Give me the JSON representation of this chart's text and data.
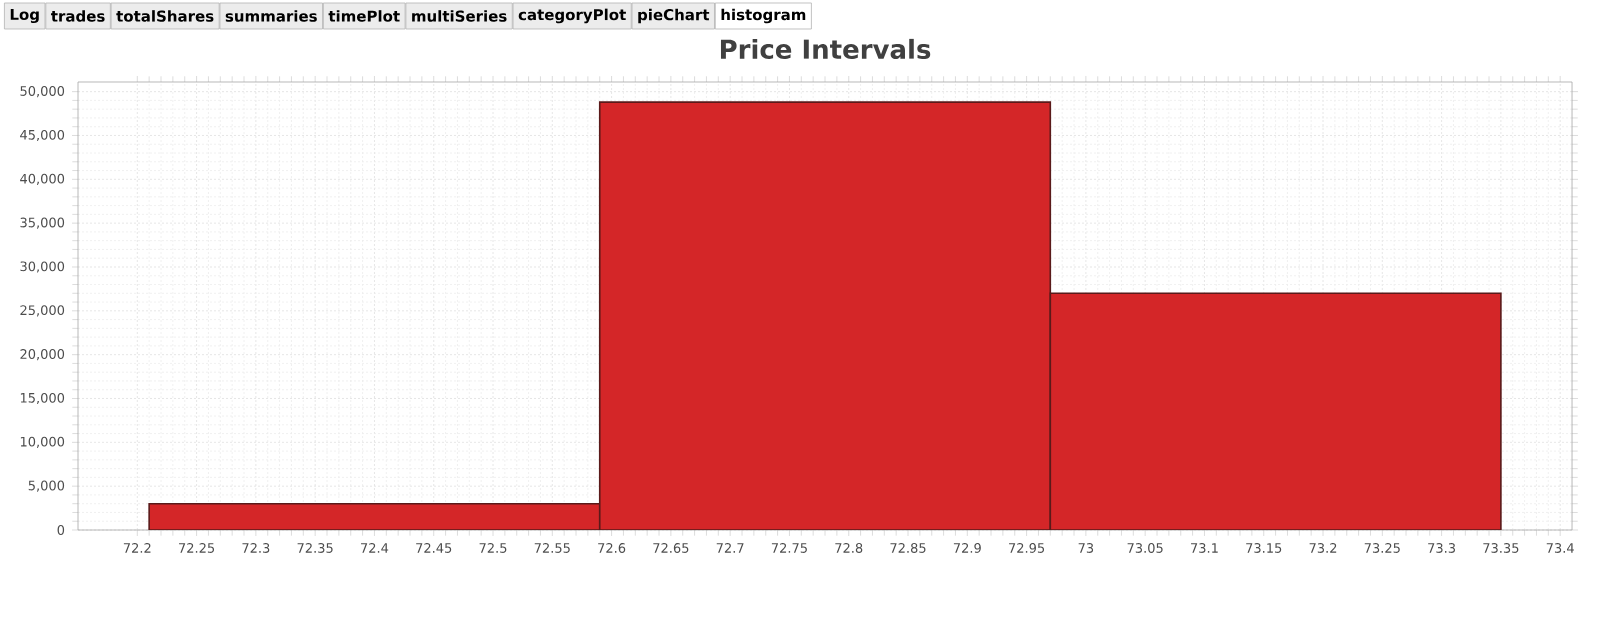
{
  "chart_data": {
    "type": "histogram",
    "title": "Price Intervals",
    "bins": [
      72.21,
      72.59,
      72.97,
      73.35
    ],
    "values": [
      3000,
      48800,
      27000
    ],
    "color": "#d42628",
    "xlim": [
      72.15,
      73.41
    ],
    "ylim": [
      0,
      51100
    ],
    "xticks": [
      72.2,
      72.25,
      72.3,
      72.35,
      72.4,
      72.45,
      72.5,
      72.55,
      72.6,
      72.65,
      72.7,
      72.75,
      72.8,
      72.85,
      72.9,
      72.95,
      73,
      73.05,
      73.1,
      73.15,
      73.2,
      73.25,
      73.3,
      73.35,
      73.4
    ],
    "yticks": [
      {
        "value": 0,
        "label": "0"
      },
      {
        "value": 5000,
        "label": "5,000"
      },
      {
        "value": 10000,
        "label": "10,000"
      },
      {
        "value": 15000,
        "label": "15,000"
      },
      {
        "value": 20000,
        "label": "20,000"
      },
      {
        "value": 25000,
        "label": "25,000"
      },
      {
        "value": 30000,
        "label": "30,000"
      },
      {
        "value": 35000,
        "label": "35,000"
      },
      {
        "value": 40000,
        "label": "40,000"
      },
      {
        "value": 45000,
        "label": "45,000"
      },
      {
        "value": 50000,
        "label": "50,000"
      }
    ],
    "grid": true,
    "annotations": [
      "Log",
      "trades",
      "totalShares",
      "summaries",
      "timePlot",
      "multiSeries",
      "categoryPlot",
      "pieChart",
      "histogram"
    ]
  }
}
